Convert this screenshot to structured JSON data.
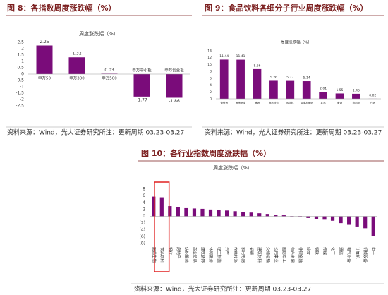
{
  "chart_data": [
    {
      "type": "bar",
      "title": "图 8：各指数周度涨跌幅（%）",
      "subtitle": "周度涨跌幅（%）",
      "source": "资料来源：Wind，光大证券研究所注：更新周期 03.23-03.27",
      "categories": [
        "申万50",
        "申万300",
        "申万500",
        "申万中小板",
        "申万创业板"
      ],
      "values": [
        2.25,
        1.32,
        0.03,
        -1.77,
        -1.86
      ],
      "color": "#7a0c7a",
      "ylim": [
        -2.5,
        2.5
      ],
      "yticks": [
        2.5,
        2,
        1.5,
        1,
        0.5,
        0,
        -0.5,
        -1,
        -1.5,
        -2,
        -2.5
      ],
      "data_labels": true,
      "grid": false
    },
    {
      "type": "bar",
      "title": "图 9：食品饮料各细分子行业周度涨跌幅（%）",
      "subtitle": "周度涨跌幅（%）",
      "source": "资料来源：Wind，光大证券研究所注：更新周期 03.23-03.27",
      "categories": [
        "葡萄酒",
        "其他酒类",
        "啤酒",
        "食品综合",
        "软饮料",
        "调味发酵品",
        "乳品",
        "黄酒",
        "肉制品",
        "白酒"
      ],
      "values": [
        11.44,
        11.41,
        8.66,
        5.26,
        5.23,
        5.14,
        2.01,
        1.55,
        1.46,
        0.02
      ],
      "color": "#7a0c7a",
      "ylim": [
        0,
        14
      ],
      "yticks": [
        0,
        2,
        4,
        6,
        8,
        10,
        12,
        14
      ],
      "data_labels": true,
      "grid": false
    },
    {
      "type": "bar",
      "title": "图 10：各行业指数周度涨跌幅（%）",
      "subtitle": "周度涨跌幅（%）",
      "source": "资料来源：Wind，光大证券研究所注：更新周期 03.23-03.27",
      "categories": [
        "医药生物",
        "食品饮料",
        "银行",
        "房地产",
        "纺织服装",
        "商业贸易",
        "建筑装饰",
        "休闲服务",
        "轻工制造",
        "汽车",
        "农林牧渔",
        "家用电器",
        "采掘",
        "建筑材料",
        "交通运输",
        "公用事业",
        "国防军工",
        "有色金属",
        "非银金融",
        "综合",
        "钢铁",
        "传媒",
        "化工",
        "通信",
        "电气设备",
        "计算机",
        "机械设备",
        "电子"
      ],
      "values": [
        5.8,
        5.6,
        3.0,
        2.6,
        2.4,
        2.3,
        2.2,
        2.0,
        1.8,
        1.7,
        1.5,
        1.3,
        1.1,
        0.9,
        0.7,
        0.5,
        0.3,
        0.1,
        -0.2,
        -0.5,
        -0.8,
        -1.0,
        -1.3,
        -2.0,
        -2.5,
        -3.0,
        -3.5,
        -5.8
      ],
      "color": "#7a0c7a",
      "ylim": [
        -8,
        8
      ],
      "yticks": [
        8,
        6,
        4,
        2,
        0,
        {
          "value": -2,
          "label": "(2)"
        },
        {
          "value": -4,
          "label": "(4)"
        },
        {
          "value": -6,
          "label": "(6)"
        },
        {
          "value": -8,
          "label": "(8)"
        }
      ],
      "data_labels": false,
      "grid": false
    }
  ]
}
